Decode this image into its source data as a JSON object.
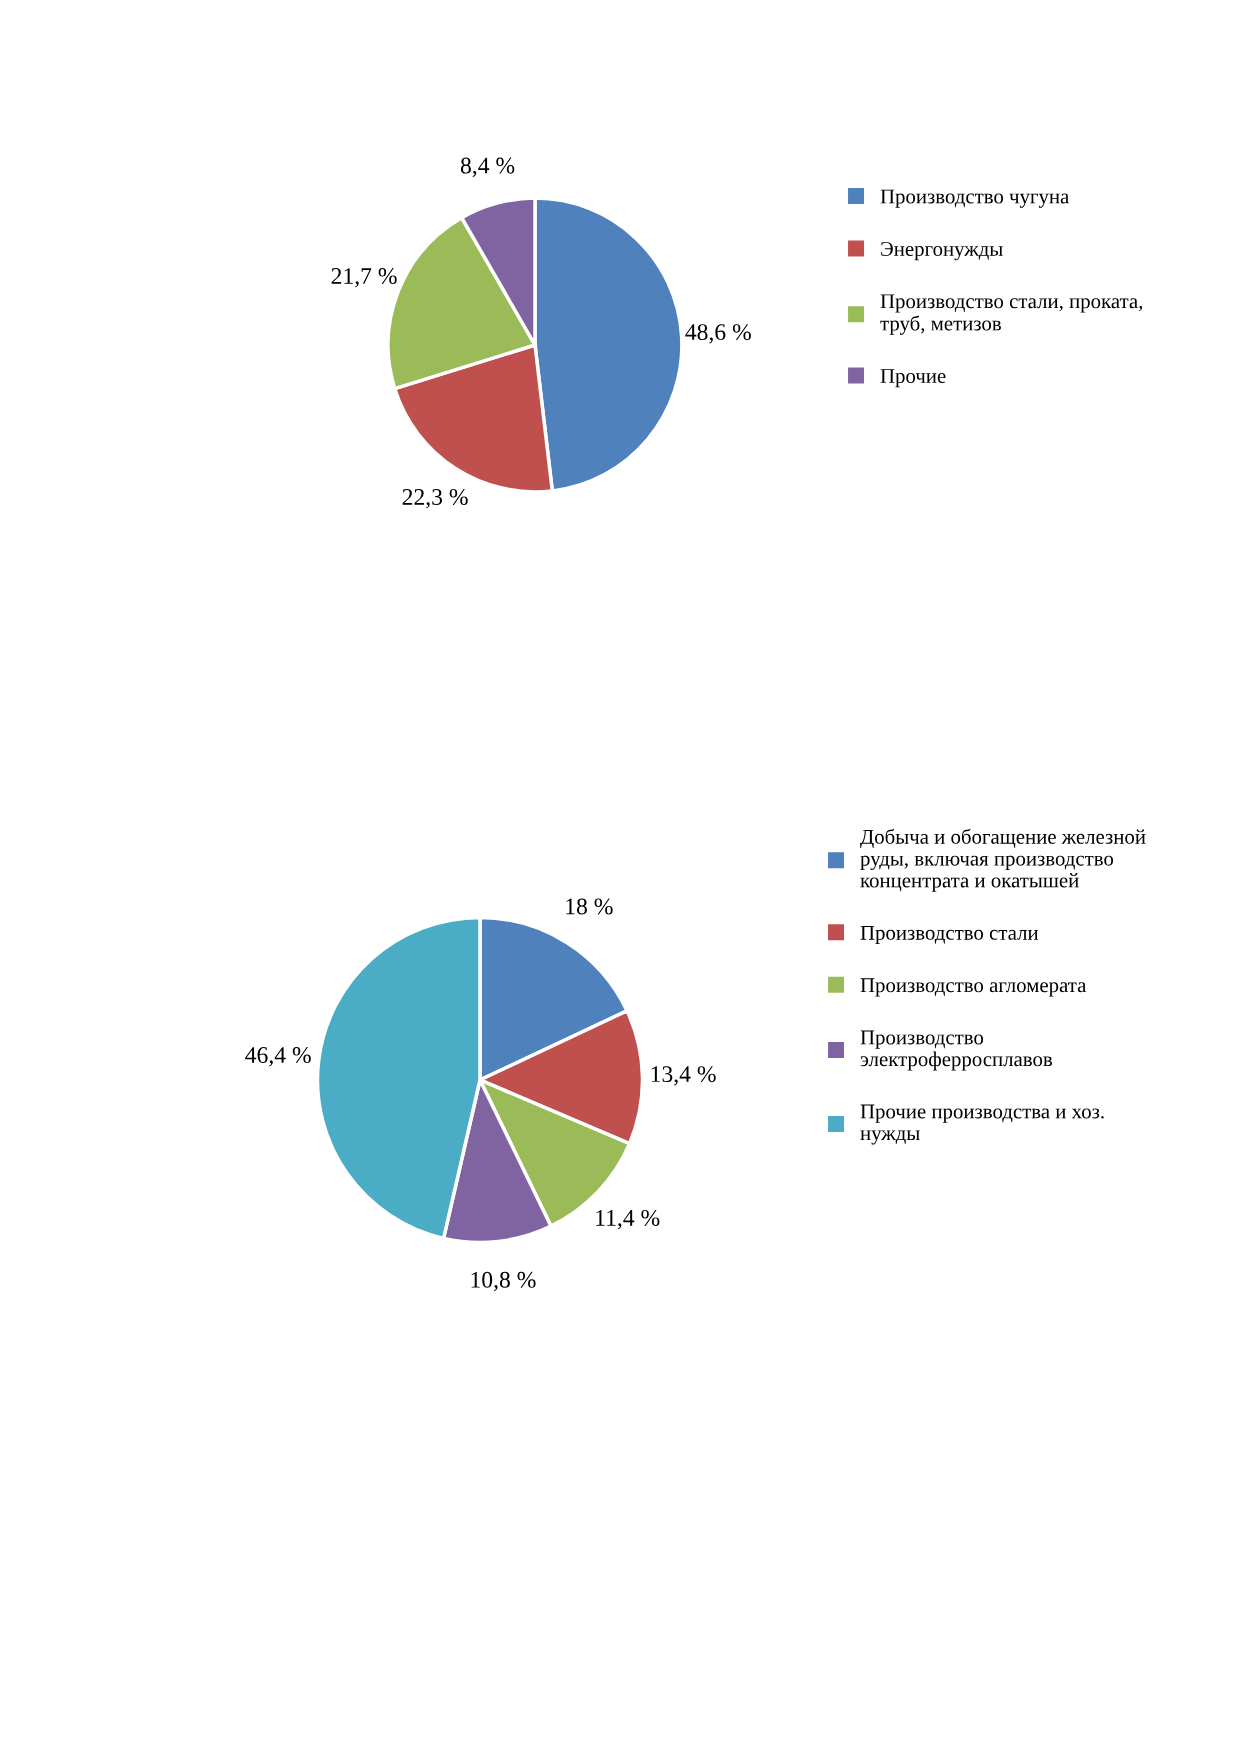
{
  "chart_data": [
    {
      "type": "pie",
      "categories": [
        "Производство чугуна",
        "Энергонужды",
        "Производство стали, проката, труб, метизов",
        "Прочие"
      ],
      "values": [
        48.6,
        22.3,
        21.7,
        8.4
      ],
      "colors": [
        "#4f81bd",
        "#c0504d",
        "#9bbb59",
        "#8064a2"
      ],
      "value_labels": [
        "48,6 %",
        "22,3 %",
        "21,7 %",
        "8,4 %"
      ],
      "legend": "right"
    },
    {
      "type": "pie",
      "categories": [
        "Добыча и обогащение железной руды, включая производство концентрата и окатышей",
        "Производство стали",
        "Производство агломерата",
        "Производство электроферросплавов",
        "Прочие производства и хоз. нужды"
      ],
      "values": [
        18,
        13.4,
        11.4,
        10.8,
        46.4
      ],
      "colors": [
        "#4f81bd",
        "#c0504d",
        "#9bbb59",
        "#8064a2",
        "#4bacc6"
      ],
      "value_labels": [
        "18 %",
        "13,4 %",
        "11,4 %",
        "10,8 %",
        "46,4 %"
      ],
      "legend": "right"
    }
  ]
}
